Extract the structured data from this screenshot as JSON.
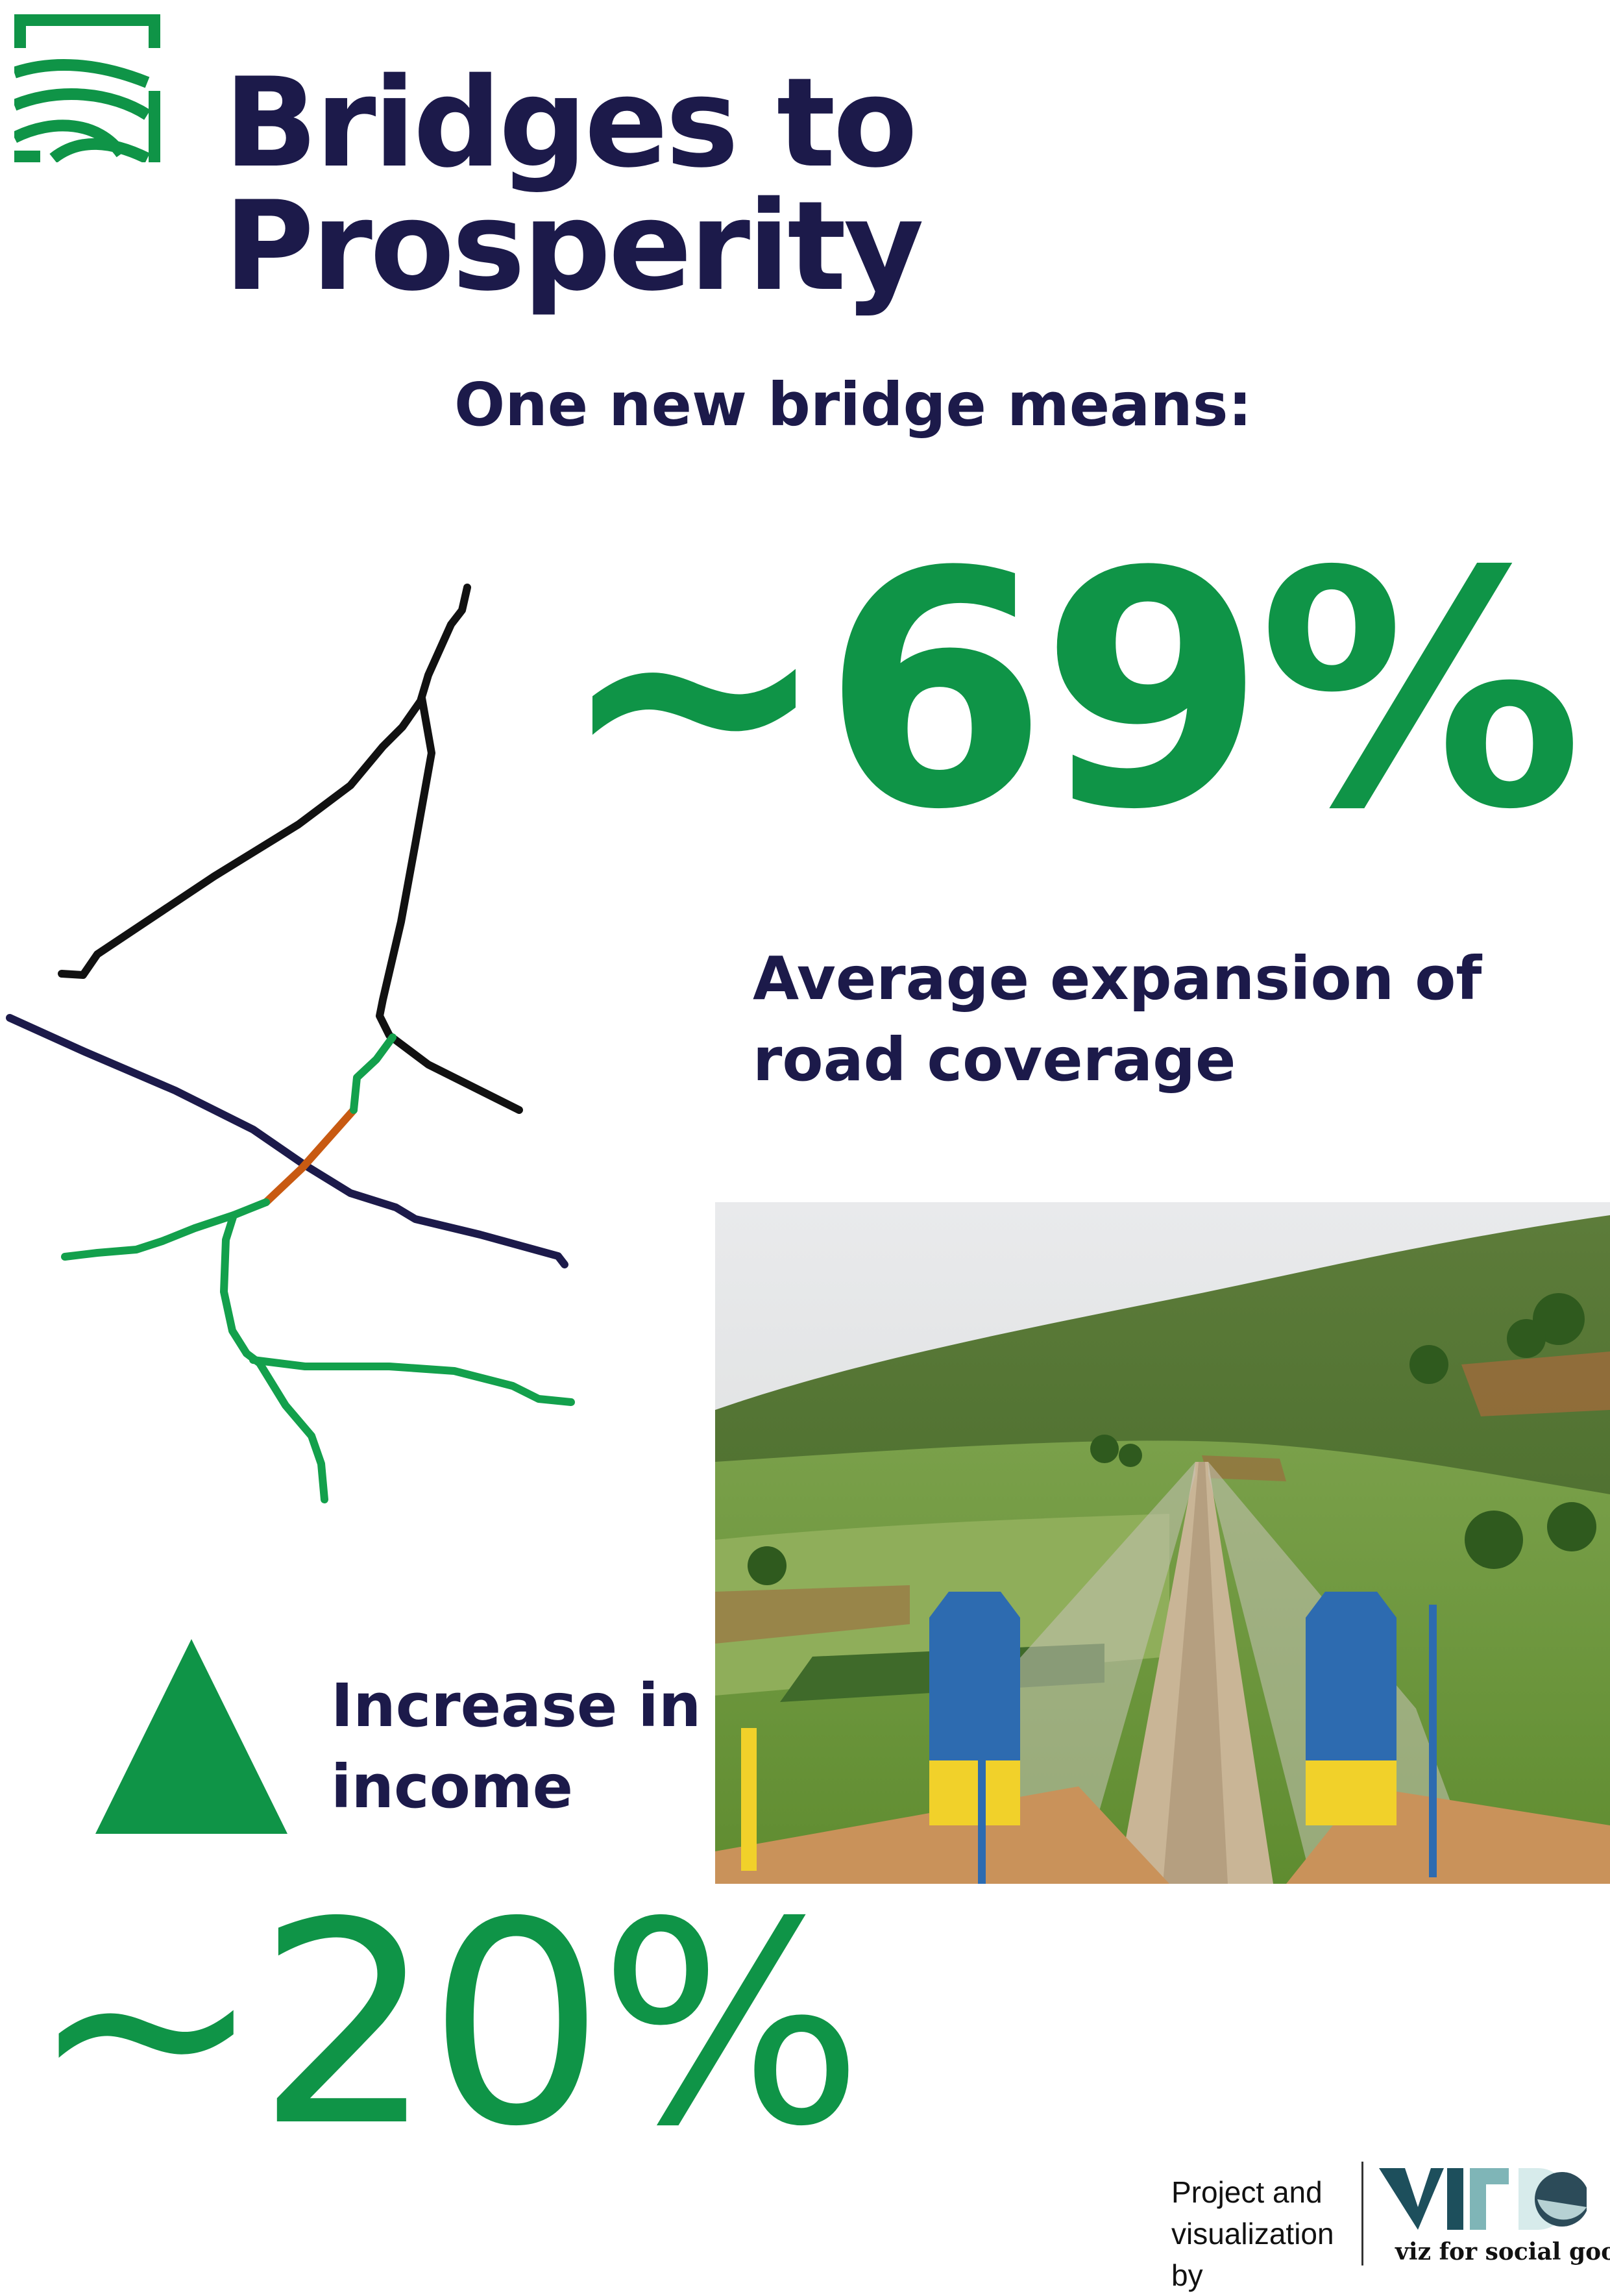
{
  "brand": {
    "title_line1": "Bridges to",
    "title_line2": "Prosperity",
    "logo_icon": "bridges-to-prosperity-logo-icon",
    "brand_green": "#0f9447",
    "brand_navy": "#1c1a4a"
  },
  "headline": "One new bridge means:",
  "road_stat": {
    "value": "~69%",
    "label": "Average expansion of road coverage",
    "illustration_icon": "road-network-icon",
    "colors": {
      "existing_roads": "#111111",
      "river": "#1c1a4a",
      "bridge": "#c85a12",
      "new_roads": "#13a04c"
    }
  },
  "income_stat": {
    "value": "~20%",
    "label": "Increase in income",
    "icon": "triangle-up-icon"
  },
  "photo": {
    "subject": "bridge-photo"
  },
  "credit": {
    "text": "Project and visualization by",
    "org_logo_icon": "viz-for-social-good-logo-icon",
    "org_caption": "viz for social good"
  }
}
